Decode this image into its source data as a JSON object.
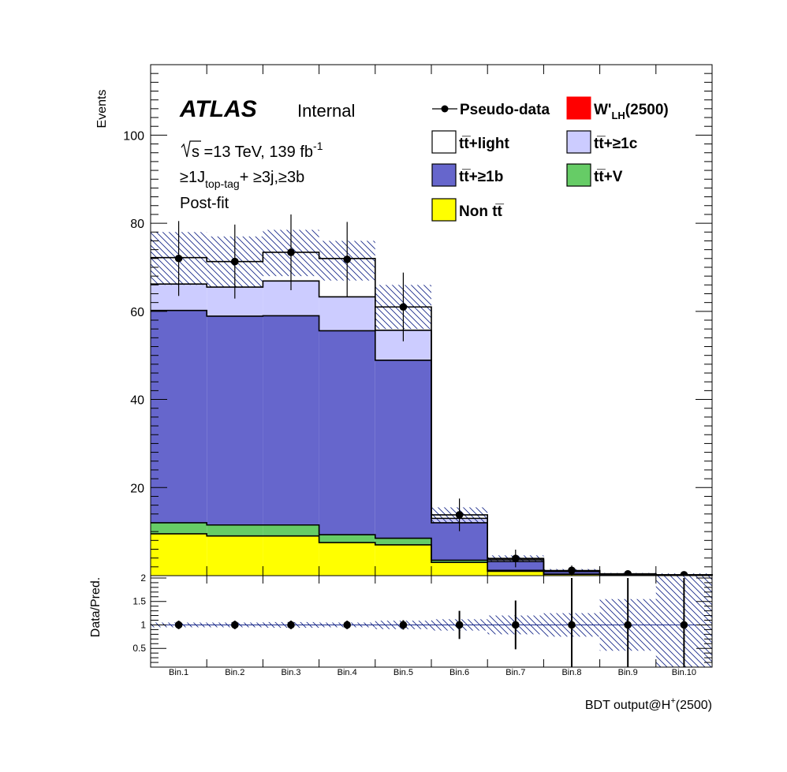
{
  "chart_data": {
    "type": "bar",
    "stacked": true,
    "categories": [
      "Bin.1",
      "Bin.2",
      "Bin.3",
      "Bin.4",
      "Bin.5",
      "Bin.6",
      "Bin.7",
      "Bin.8",
      "Bin.9",
      "Bin.10"
    ],
    "xlabel": "BDT output@H",
    "xlabel_sup": "+",
    "xlabel_tail": "(2500)",
    "ylabel": "Events",
    "ylim": [
      0,
      116
    ],
    "yticks": [
      20,
      40,
      60,
      80,
      100
    ],
    "ratio": {
      "ylabel": "Data/Pred.",
      "ylim": [
        0.1,
        2.05
      ],
      "yticks": [
        0.5,
        1,
        1.5,
        2
      ],
      "yticklabels": [
        "0.5",
        "1",
        "1.5",
        "2"
      ],
      "values": [
        1.0,
        1.0,
        1.0,
        1.0,
        1.0,
        1.0,
        1.0,
        1.0,
        1.0,
        1.0
      ],
      "err": [
        0.09,
        0.09,
        0.09,
        0.09,
        0.1,
        0.3,
        0.52,
        1.0,
        1.0,
        1.0
      ],
      "band": [
        0.05,
        0.05,
        0.06,
        0.05,
        0.09,
        0.12,
        0.2,
        0.25,
        0.55,
        1.2
      ]
    },
    "series": [
      {
        "name": "Non tt̅",
        "color": "#ffff00",
        "values": [
          9.5,
          9.0,
          9.0,
          7.5,
          7.0,
          3.0,
          1.0,
          0.3,
          0.1,
          0.05
        ]
      },
      {
        "name": "tt̅+V",
        "color": "#66cc66",
        "values": [
          2.5,
          2.5,
          2.5,
          1.8,
          1.5,
          0.5,
          0.2,
          0.05,
          0.02,
          0.01
        ]
      },
      {
        "name": "tt̅+≥1b",
        "color": "#6666cc",
        "values": [
          48.2,
          47.4,
          47.5,
          46.3,
          40.4,
          8.5,
          2.0,
          0.6,
          0.2,
          0.1
        ]
      },
      {
        "name": "tt̅+≥1c",
        "color": "#ccccff",
        "values": [
          6.0,
          6.6,
          7.9,
          7.7,
          6.8,
          1.0,
          0.4,
          0.1,
          0.05,
          0.02
        ]
      },
      {
        "name": "tt̅+light",
        "color": "#ffffff",
        "values": [
          6.0,
          5.8,
          6.5,
          8.7,
          5.3,
          0.8,
          0.3,
          0.1,
          0.05,
          0.02
        ]
      },
      {
        "name": "W'",
        "name_sub": "LH",
        "name_tail": "(2500)",
        "color": "#ff0000",
        "values": [
          0,
          0,
          0,
          0,
          0,
          0,
          0,
          0,
          0,
          0
        ]
      }
    ],
    "pseudo_data": {
      "name": "Pseudo-data",
      "values": [
        72.0,
        71.3,
        73.4,
        71.8,
        61.0,
        13.8,
        3.9,
        1.2,
        0.4,
        0.2
      ],
      "err": [
        8.5,
        8.4,
        8.6,
        8.5,
        7.8,
        3.7,
        2.0,
        1.1,
        0.6,
        0.4
      ]
    },
    "uncertainty": {
      "up": [
        78.0,
        77.0,
        78.5,
        76.0,
        66.0,
        15.5,
        4.6,
        1.5,
        0.6,
        0.5
      ],
      "down": [
        66.0,
        65.5,
        68.0,
        67.0,
        56.0,
        12.0,
        3.3,
        0.8,
        0.2,
        0.0
      ]
    }
  },
  "labels": {
    "atlas": "ATLAS",
    "internal": "Internal",
    "energy_pre": "s =13 TeV, 139 fb",
    "energy_sup": "-1",
    "selection_pre": "≥1J",
    "selection_sub": "top-tag",
    "selection_post": "+ ≥3j,≥3b",
    "fit": "Post-fit"
  },
  "legend": {
    "pseudo": "Pseudo-data",
    "wprime_pre": "W'",
    "wprime_sub": "LH",
    "wprime_post": "(2500)",
    "ttlight": "tt̅+light",
    "tt1c": "tt̅+≥1c",
    "tt1b": "tt̅+≥1b",
    "ttv": "tt̅+V",
    "nontt": "Non tt̅"
  }
}
